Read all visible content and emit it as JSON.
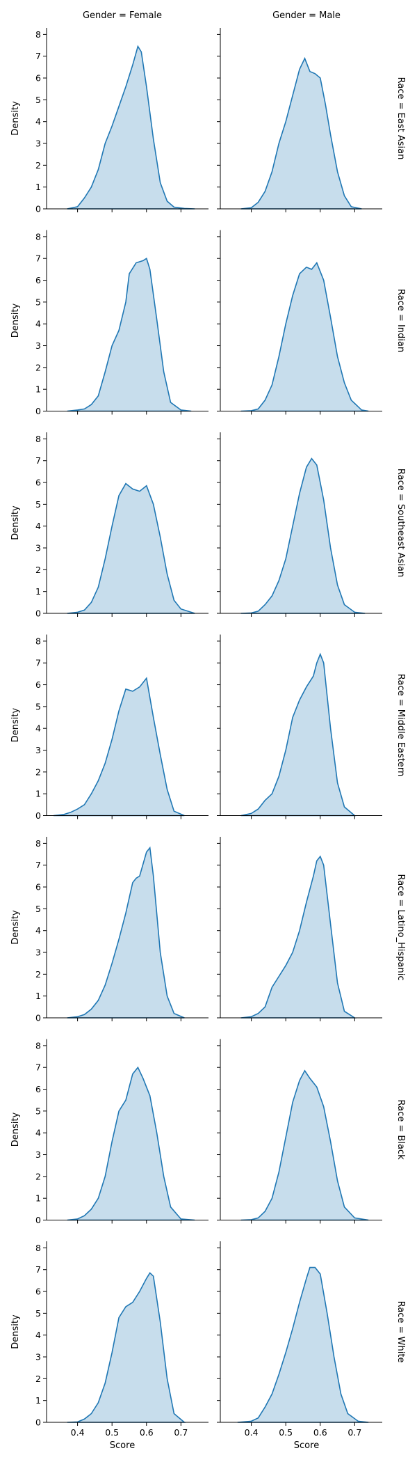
{
  "chart_data": {
    "type": "area",
    "subtype": "kde-facet-grid",
    "col_titles": [
      "Gender = Female",
      "Gender = Male"
    ],
    "row_titles": [
      "Race = East Asian",
      "Race = Indian",
      "Race = Southeast Asian",
      "Race = Middle Eastern",
      "Race = Latino_Hispanic",
      "Race = Black",
      "Race = White"
    ],
    "xlabel": "Score",
    "ylabel": "Density",
    "xlim": [
      0.31,
      0.78
    ],
    "ylim": [
      0,
      8.3
    ],
    "x_ticks": [
      0.4,
      0.5,
      0.6,
      0.7
    ],
    "x_tick_labels": [
      "0.4",
      "0.5",
      "0.6",
      "0.7"
    ],
    "y_ticks": [
      0,
      1,
      2,
      3,
      4,
      5,
      6,
      7,
      8
    ],
    "y_tick_labels": [
      "0",
      "1",
      "2",
      "3",
      "4",
      "5",
      "6",
      "7",
      "8"
    ],
    "color": "#1f77b4",
    "grid": false,
    "panels": [
      [
        {
          "x": [
            0.37,
            0.4,
            0.42,
            0.44,
            0.46,
            0.48,
            0.5,
            0.52,
            0.54,
            0.56,
            0.575,
            0.585,
            0.6,
            0.62,
            0.64,
            0.66,
            0.68,
            0.71,
            0.74
          ],
          "y": [
            0,
            0.1,
            0.5,
            1.0,
            1.8,
            3.0,
            3.8,
            4.7,
            5.6,
            6.6,
            7.45,
            7.2,
            5.6,
            3.2,
            1.2,
            0.35,
            0.08,
            0.02,
            0
          ]
        },
        {
          "x": [
            0.37,
            0.4,
            0.42,
            0.44,
            0.46,
            0.48,
            0.5,
            0.52,
            0.54,
            0.555,
            0.57,
            0.585,
            0.6,
            0.615,
            0.63,
            0.65,
            0.67,
            0.69,
            0.72
          ],
          "y": [
            0,
            0.05,
            0.3,
            0.8,
            1.7,
            3.0,
            4.0,
            5.2,
            6.4,
            6.9,
            6.3,
            6.2,
            6.0,
            4.8,
            3.4,
            1.7,
            0.6,
            0.1,
            0
          ]
        }
      ],
      [
        {
          "x": [
            0.37,
            0.4,
            0.42,
            0.44,
            0.46,
            0.48,
            0.5,
            0.52,
            0.54,
            0.55,
            0.57,
            0.59,
            0.6,
            0.61,
            0.63,
            0.65,
            0.67,
            0.7,
            0.73
          ],
          "y": [
            0,
            0.05,
            0.1,
            0.3,
            0.7,
            1.8,
            3.0,
            3.7,
            5.0,
            6.3,
            6.8,
            6.9,
            7.0,
            6.5,
            4.2,
            1.8,
            0.4,
            0.05,
            0
          ]
        },
        {
          "x": [
            0.37,
            0.4,
            0.42,
            0.44,
            0.46,
            0.48,
            0.5,
            0.52,
            0.54,
            0.56,
            0.575,
            0.59,
            0.61,
            0.63,
            0.65,
            0.67,
            0.69,
            0.72,
            0.74
          ],
          "y": [
            0,
            0.02,
            0.1,
            0.5,
            1.2,
            2.5,
            4.0,
            5.3,
            6.3,
            6.6,
            6.5,
            6.8,
            6.0,
            4.3,
            2.5,
            1.3,
            0.5,
            0.05,
            0
          ]
        }
      ],
      [
        {
          "x": [
            0.37,
            0.4,
            0.42,
            0.44,
            0.46,
            0.48,
            0.5,
            0.52,
            0.54,
            0.56,
            0.58,
            0.6,
            0.62,
            0.64,
            0.66,
            0.68,
            0.7,
            0.72,
            0.74
          ],
          "y": [
            0,
            0.05,
            0.15,
            0.5,
            1.2,
            2.5,
            4.0,
            5.4,
            5.95,
            5.7,
            5.6,
            5.85,
            5.0,
            3.5,
            1.8,
            0.6,
            0.2,
            0.1,
            0
          ]
        },
        {
          "x": [
            0.37,
            0.4,
            0.42,
            0.44,
            0.46,
            0.48,
            0.5,
            0.52,
            0.54,
            0.56,
            0.575,
            0.59,
            0.61,
            0.63,
            0.65,
            0.67,
            0.7,
            0.73
          ],
          "y": [
            0,
            0.02,
            0.1,
            0.4,
            0.8,
            1.5,
            2.5,
            4.0,
            5.5,
            6.7,
            7.1,
            6.8,
            5.2,
            3.0,
            1.3,
            0.4,
            0.05,
            0
          ]
        }
      ],
      [
        {
          "x": [
            0.33,
            0.36,
            0.38,
            0.4,
            0.42,
            0.44,
            0.46,
            0.48,
            0.5,
            0.52,
            0.54,
            0.56,
            0.58,
            0.6,
            0.62,
            0.64,
            0.66,
            0.68,
            0.71
          ],
          "y": [
            0,
            0.05,
            0.15,
            0.3,
            0.5,
            1.0,
            1.6,
            2.4,
            3.5,
            4.8,
            5.8,
            5.7,
            5.9,
            6.3,
            4.5,
            2.8,
            1.2,
            0.2,
            0
          ]
        },
        {
          "x": [
            0.37,
            0.4,
            0.42,
            0.44,
            0.46,
            0.48,
            0.5,
            0.52,
            0.54,
            0.56,
            0.58,
            0.59,
            0.6,
            0.61,
            0.63,
            0.65,
            0.67,
            0.7
          ],
          "y": [
            0,
            0.1,
            0.3,
            0.7,
            1.0,
            1.8,
            3.0,
            4.5,
            5.3,
            5.9,
            6.4,
            7.0,
            7.4,
            7.0,
            4.0,
            1.5,
            0.4,
            0
          ]
        }
      ],
      [
        {
          "x": [
            0.37,
            0.4,
            0.42,
            0.44,
            0.46,
            0.48,
            0.5,
            0.52,
            0.54,
            0.56,
            0.57,
            0.58,
            0.6,
            0.61,
            0.62,
            0.64,
            0.66,
            0.68,
            0.71
          ],
          "y": [
            0,
            0.05,
            0.15,
            0.4,
            0.8,
            1.5,
            2.5,
            3.6,
            4.8,
            6.2,
            6.4,
            6.5,
            7.6,
            7.8,
            6.5,
            3.0,
            1.0,
            0.2,
            0
          ]
        },
        {
          "x": [
            0.37,
            0.4,
            0.42,
            0.44,
            0.46,
            0.48,
            0.5,
            0.52,
            0.54,
            0.56,
            0.58,
            0.59,
            0.6,
            0.61,
            0.63,
            0.65,
            0.67,
            0.7
          ],
          "y": [
            0,
            0.05,
            0.2,
            0.5,
            1.4,
            1.9,
            2.4,
            3.0,
            4.0,
            5.3,
            6.5,
            7.2,
            7.4,
            7.0,
            4.3,
            1.6,
            0.3,
            0
          ]
        }
      ],
      [
        {
          "x": [
            0.37,
            0.4,
            0.42,
            0.44,
            0.46,
            0.48,
            0.5,
            0.52,
            0.54,
            0.56,
            0.575,
            0.59,
            0.61,
            0.63,
            0.65,
            0.67,
            0.7,
            0.74
          ],
          "y": [
            0,
            0.05,
            0.2,
            0.5,
            1.0,
            2.0,
            3.6,
            5.0,
            5.5,
            6.7,
            7.0,
            6.5,
            5.7,
            4.0,
            2.0,
            0.6,
            0.05,
            0
          ]
        },
        {
          "x": [
            0.37,
            0.4,
            0.42,
            0.44,
            0.46,
            0.48,
            0.5,
            0.52,
            0.54,
            0.555,
            0.57,
            0.59,
            0.61,
            0.63,
            0.65,
            0.67,
            0.7,
            0.74
          ],
          "y": [
            0,
            0.02,
            0.1,
            0.4,
            1.0,
            2.2,
            3.8,
            5.4,
            6.4,
            6.85,
            6.5,
            6.1,
            5.2,
            3.6,
            1.8,
            0.6,
            0.1,
            0
          ]
        }
      ],
      [
        {
          "x": [
            0.37,
            0.4,
            0.42,
            0.44,
            0.46,
            0.48,
            0.5,
            0.52,
            0.54,
            0.56,
            0.58,
            0.6,
            0.61,
            0.62,
            0.64,
            0.66,
            0.68,
            0.71
          ],
          "y": [
            0,
            0.02,
            0.15,
            0.4,
            0.9,
            1.8,
            3.2,
            4.8,
            5.3,
            5.5,
            6.0,
            6.6,
            6.85,
            6.7,
            4.6,
            2.0,
            0.4,
            0
          ]
        },
        {
          "x": [
            0.36,
            0.4,
            0.42,
            0.44,
            0.46,
            0.48,
            0.5,
            0.52,
            0.54,
            0.56,
            0.57,
            0.585,
            0.6,
            0.62,
            0.64,
            0.66,
            0.68,
            0.71,
            0.74
          ],
          "y": [
            0,
            0.05,
            0.2,
            0.7,
            1.3,
            2.2,
            3.2,
            4.3,
            5.5,
            6.6,
            7.1,
            7.1,
            6.8,
            5.0,
            3.0,
            1.3,
            0.4,
            0.05,
            0
          ]
        }
      ]
    ]
  }
}
